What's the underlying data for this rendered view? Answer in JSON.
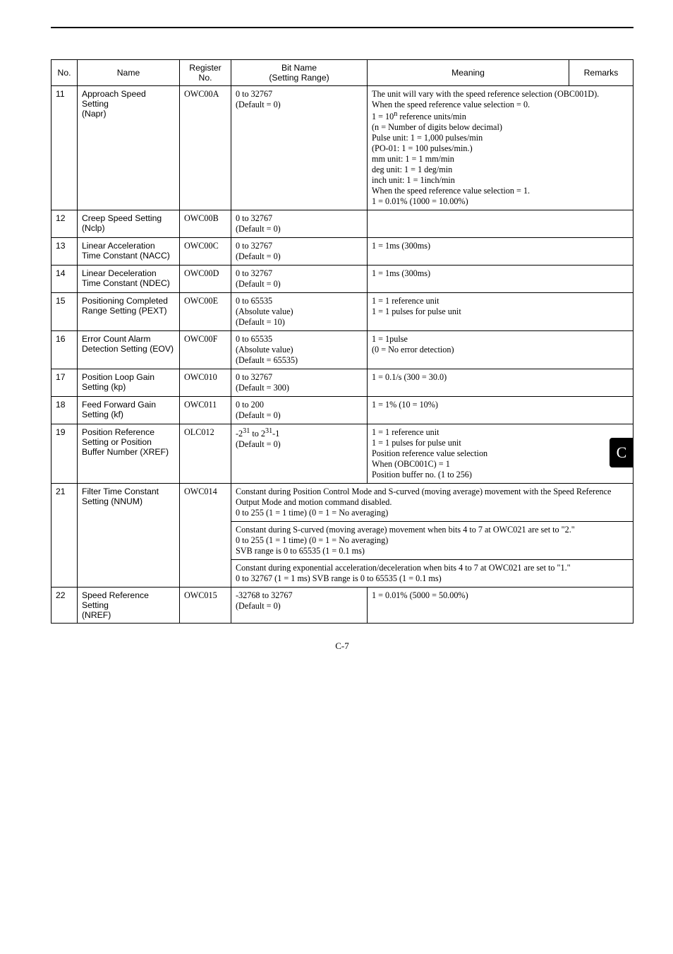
{
  "pageNumber": "C-7",
  "sideTab": "C",
  "header": {
    "no": "No.",
    "name": "Name",
    "reg": "Register\nNo.",
    "bitname": "Bit Name\n(Setting Range)",
    "meaning": "Meaning",
    "remarks": "Remarks"
  },
  "rows": [
    {
      "no": "11",
      "name": "Approach Speed Setting\n(Napr)",
      "reg": "OWC00A",
      "bit": "0 to 32767\n(Default = 0)",
      "mean_html": "The unit will vary with the speed reference selection (OBC001D).<br>When the speed reference value selection = 0.<br>1 = 10<sup>n</sup> reference units/min<br>(n = Number of digits below decimal)<br>Pulse unit: 1 = 1,000 pulses/min<br>(PO-01: 1 = 100 pulses/min.)<br>mm unit: 1 = 1 mm/min<br>deg unit: 1 = 1 deg/min<br>inch unit: 1 = 1inch/min<br>When the speed reference value selection = 1.<br>1 = 0.01% (1000 = 10.00%)",
      "span2": true
    },
    {
      "no": "12",
      "name": "Creep Speed Setting\n(Nclp)",
      "reg": "OWC00B",
      "bit": "0 to 32767\n(Default = 0)",
      "mean": "",
      "span2": true
    },
    {
      "no": "13",
      "name": "Linear Acceleration Time Constant (NACC)",
      "reg": "OWC00C",
      "bit": "0 to 32767\n(Default = 0)",
      "mean": "1 = 1ms (300ms)",
      "span2": true
    },
    {
      "no": "14",
      "name": "Linear Deceleration Time Constant (NDEC)",
      "reg": "OWC00D",
      "bit": "0 to 32767\n(Default = 0)",
      "mean": "1 = 1ms (300ms)",
      "span2": true
    },
    {
      "no": "15",
      "name": "Positioning Completed Range Setting (PEXT)",
      "reg": "OWC00E",
      "bit": "0 to 65535\n(Absolute value)\n(Default = 10)",
      "mean": "1 = 1 reference unit\n1 = 1 pulses for pulse unit",
      "span2": true
    },
    {
      "no": "16",
      "name": "Error Count Alarm Detection Setting (EOV)",
      "reg": "OWC00F",
      "bit": "0 to 65535\n(Absolute value)\n(Default = 65535)",
      "mean": "1 = 1pulse\n(0 = No error detection)",
      "span2": true
    },
    {
      "no": "17",
      "name": "Position Loop Gain Setting (kp)",
      "reg": "OWC010",
      "bit": "0 to 32767\n(Default = 300)",
      "mean": "1 = 0.1/s (300 = 30.0)",
      "span2": true
    },
    {
      "no": "18",
      "name": "Feed Forward Gain Setting (kf)",
      "reg": "OWC011",
      "bit": "0 to 200\n(Default = 0)",
      "mean": "1 = 1% (10 = 10%)",
      "span2": true
    },
    {
      "no": "19",
      "name": "Position Reference Setting or Position Buffer Number (XREF)",
      "reg": "OLC012",
      "bit_html": "-2<sup>31</sup> to 2<sup>31</sup>-1<br>(Default = 0)",
      "mean": "1 = 1 reference unit\n1 = 1 pulses for pulse unit\nPosition reference value selection\nWhen (OBC001C) = 1\nPosition buffer no. (1 to 256)",
      "span2": true
    }
  ],
  "row21": {
    "no": "21",
    "name": "Filter Time Constant Setting (NNUM)",
    "reg": "OWC014",
    "cell1": "Constant during Position Control Mode and S-curved (moving average) movement with the Speed Reference Output Mode and motion command disabled.\n0 to 255 (1 = 1 time) (0 = 1 = No averaging)",
    "cell2": "Constant during S-curved (moving average) movement when bits 4 to 7 at OWC021 are set to \"2.\"\n0 to 255 (1 = 1 time) (0 = 1 = No averaging)\nSVB range is 0 to 65535 (1 = 0.1 ms)",
    "cell3": "Constant during exponential acceleration/deceleration when bits 4 to 7 at OWC021 are set to \"1.\"\n0 to 32767 (1 = 1 ms)   SVB range is 0 to 65535 (1 = 0.1 ms)"
  },
  "row22": {
    "no": "22",
    "name": "Speed Reference Setting\n(NREF)",
    "reg": "OWC015",
    "bit": "-32768 to 32767\n(Default = 0)",
    "mean": "1 = 0.01% (5000 = 50.00%)"
  }
}
